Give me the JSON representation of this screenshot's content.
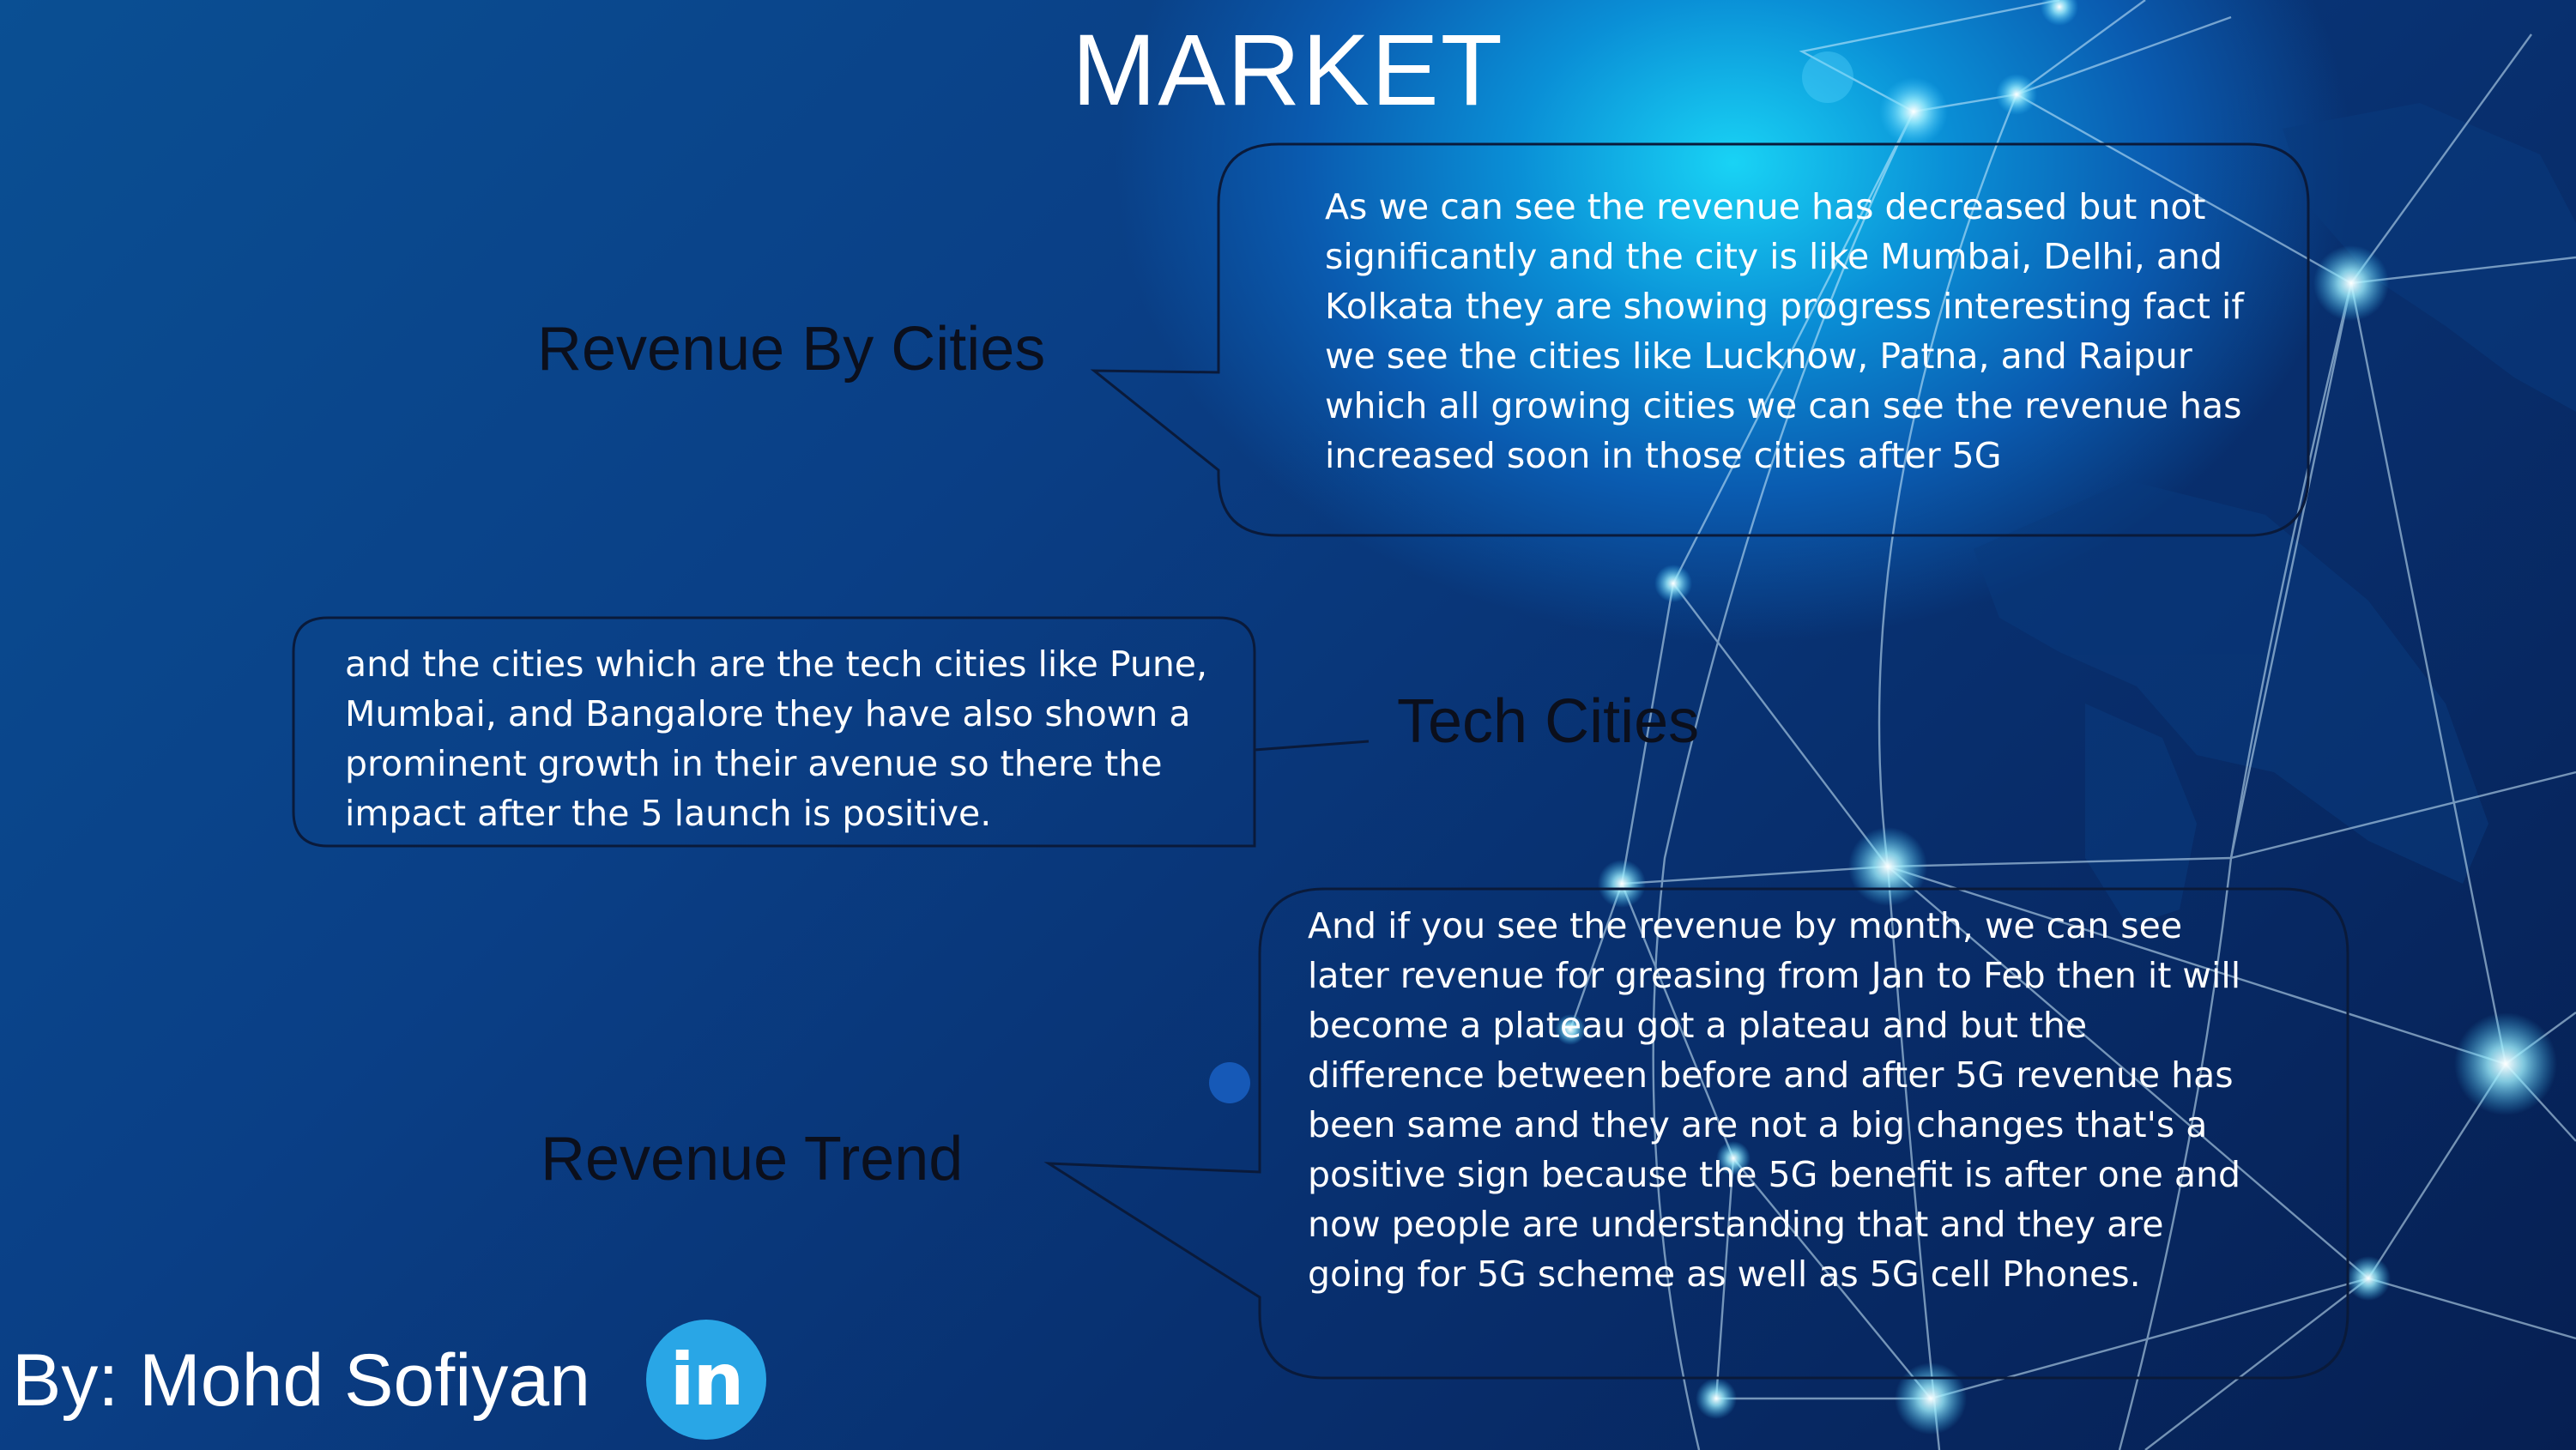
{
  "slide": {
    "title": "MARKET",
    "sections": [
      {
        "label": "Revenue By Cities",
        "text": "As we can see the revenue has decreased but not significantly and the city is like Mumbai, Delhi, and Kolkata they are showing progress interesting fact if we see the cities like Lucknow, Patna, and Raipur which all growing cities we can see the revenue has increased soon in those cities after 5G"
      },
      {
        "label": "Tech Cities",
        "text": "and the cities which are the tech cities like Pune, Mumbai, and Bangalore they have also shown a prominent growth in their avenue so there the impact after the 5 launch is positive."
      },
      {
        "label": "Revenue Trend",
        "text": "And if you see the revenue by month, we can see later revenue for greasing from Jan to Feb then it will become a plateau got a plateau and but the difference between before and after 5G revenue has been same and they are not a big changes that's a positive sign because the 5G benefit is after one and now people are understanding that and they are going for 5G scheme as well as 5G cell Phones."
      }
    ],
    "author": "By: Mohd Sofiyan",
    "linkedin_label": "in"
  },
  "colors": {
    "background_dark": "#061f52",
    "background_glow": "#19d3f5",
    "callout_border": "#0a1a3a",
    "label_text": "#0b0f1c",
    "linkedin_blue": "#29a6e6"
  }
}
